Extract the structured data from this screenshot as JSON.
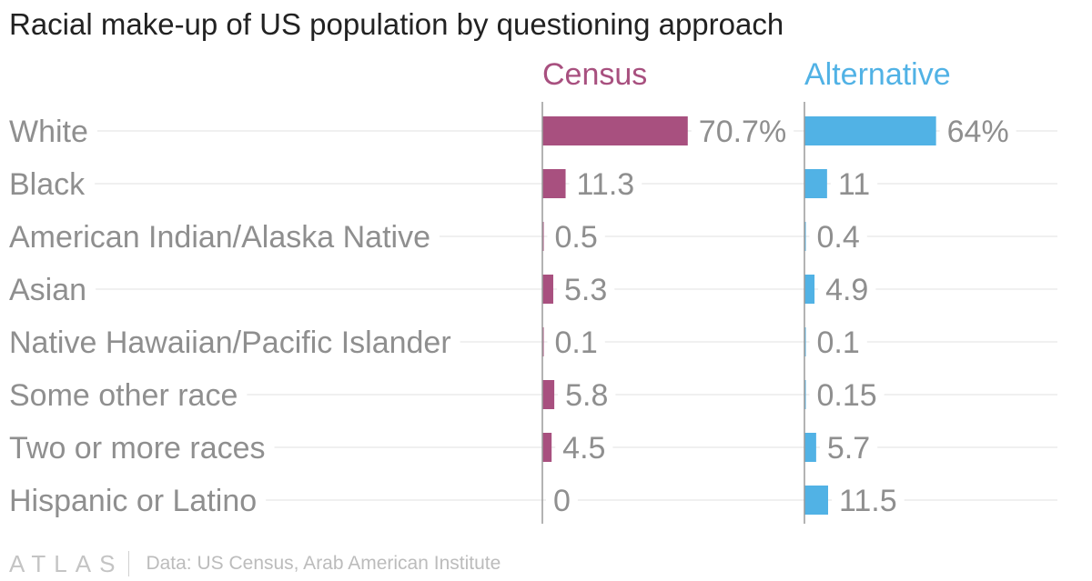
{
  "chart_data": {
    "type": "bar",
    "title": "Racial make-up of US population by questioning approach",
    "categories": [
      "White",
      "Black",
      "American Indian/Alaska Native",
      "Asian",
      "Native Hawaiian/Pacific Islander",
      "Some other race",
      "Two or more races",
      "Hispanic or Latino"
    ],
    "series": [
      {
        "name": "Census",
        "color": "#a8507f",
        "values": [
          70.7,
          11.3,
          0.5,
          5.3,
          0.1,
          5.8,
          4.5,
          0
        ],
        "labels": [
          "70.7%",
          "11.3",
          "0.5",
          "5.3",
          "0.1",
          "5.8",
          "4.5",
          "0"
        ]
      },
      {
        "name": "Alternative",
        "color": "#51b2e5",
        "values": [
          64,
          11,
          0.4,
          4.9,
          0.1,
          0.15,
          5.7,
          11.5
        ],
        "labels": [
          "64%",
          "11",
          "0.4",
          "4.9",
          "0.1",
          "0.15",
          "5.7",
          "11.5"
        ]
      }
    ],
    "xlim": [
      0,
      100
    ],
    "grid": true
  },
  "footer": {
    "logo": "ATLAS",
    "source": "Data: US Census, Arab American Institute"
  }
}
